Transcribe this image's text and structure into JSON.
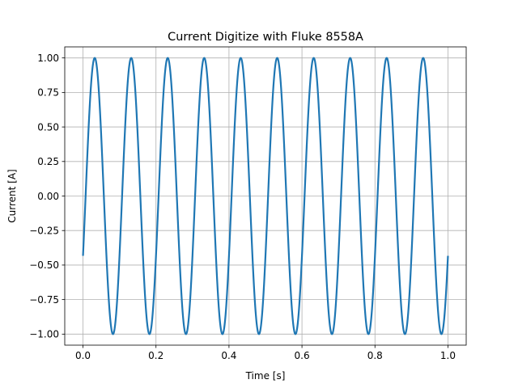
{
  "chart_data": {
    "type": "line",
    "title": "Current Digitize with Fluke 8558A",
    "xlabel": "Time [s]",
    "ylabel": "Current [A]",
    "xlim": [
      -0.05,
      1.05
    ],
    "ylim": [
      -1.08,
      1.08
    ],
    "grid": true,
    "xticks": [
      0.0,
      0.2,
      0.4,
      0.6,
      0.8,
      1.0
    ],
    "xtick_labels": [
      "0.0",
      "0.2",
      "0.4",
      "0.6",
      "0.8",
      "1.0"
    ],
    "yticks": [
      -1.0,
      -0.75,
      -0.5,
      -0.25,
      0.0,
      0.25,
      0.5,
      0.75,
      1.0
    ],
    "ytick_labels": [
      "−1.00",
      "−0.75",
      "−0.50",
      "−0.25",
      "0.00",
      "0.25",
      "0.50",
      "0.75",
      "1.00"
    ],
    "series": [
      {
        "color": "#1f77b4",
        "x_start": 0.0,
        "x_end": 1.0,
        "amplitude": 1.0,
        "frequency_hz": 10,
        "phase_rad": -0.448,
        "first_value": -0.43,
        "last_value": -0.43
      }
    ]
  }
}
